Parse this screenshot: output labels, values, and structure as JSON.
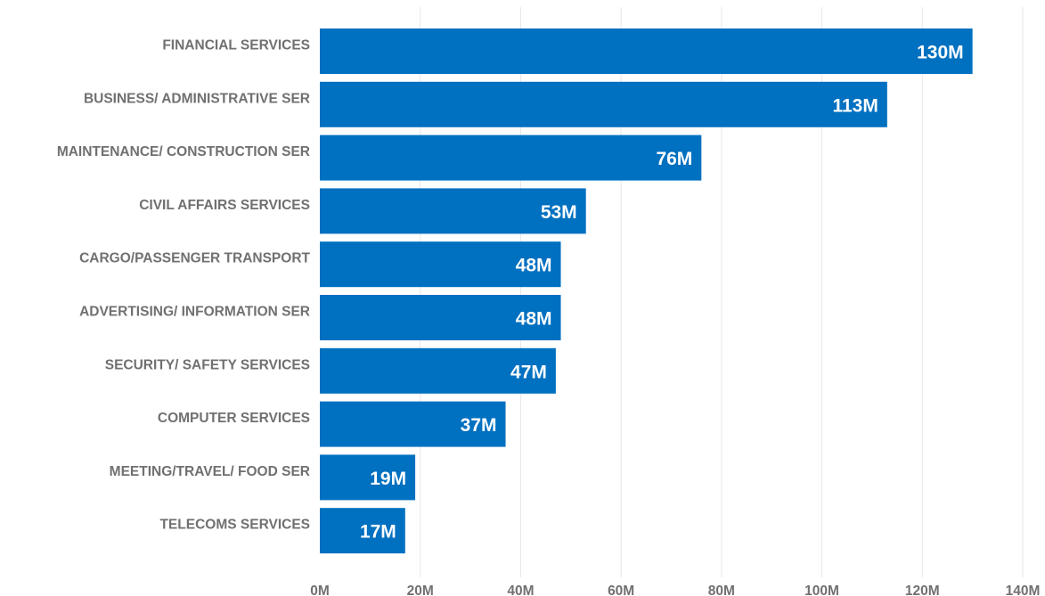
{
  "chart_data": {
    "type": "bar",
    "orientation": "horizontal",
    "title": "",
    "xlabel": "",
    "ylabel": "",
    "categories": [
      "FINANCIAL SERVICES",
      "BUSINESS/ ADMINISTRATIVE SER",
      "MAINTENANCE/ CONSTRUCTION SER",
      "CIVIL AFFAIRS SERVICES",
      "CARGO/PASSENGER TRANSPORT",
      "ADVERTISING/ INFORMATION SER",
      "SECURITY/ SAFETY SERVICES",
      "COMPUTER SERVICES",
      "MEETING/TRAVEL/ FOOD SER",
      "TELECOMS SERVICES"
    ],
    "values": [
      130,
      113,
      76,
      53,
      48,
      48,
      47,
      37,
      19,
      17
    ],
    "data_labels": [
      "130M",
      "113M",
      "76M",
      "53M",
      "48M",
      "48M",
      "47M",
      "37M",
      "19M",
      "17M"
    ],
    "value_unit": "M",
    "xlim": [
      0,
      140
    ],
    "xticks": [
      0,
      20,
      40,
      60,
      80,
      100,
      120,
      140
    ],
    "xtick_labels": [
      "0M",
      "20M",
      "40M",
      "60M",
      "80M",
      "100M",
      "120M",
      "140M"
    ],
    "grid": true,
    "legend": "none",
    "colors": {
      "bar": "#0070c0",
      "data_label": "#ffffff",
      "axis_text": "#707070",
      "grid": "#e6e6e6"
    }
  }
}
